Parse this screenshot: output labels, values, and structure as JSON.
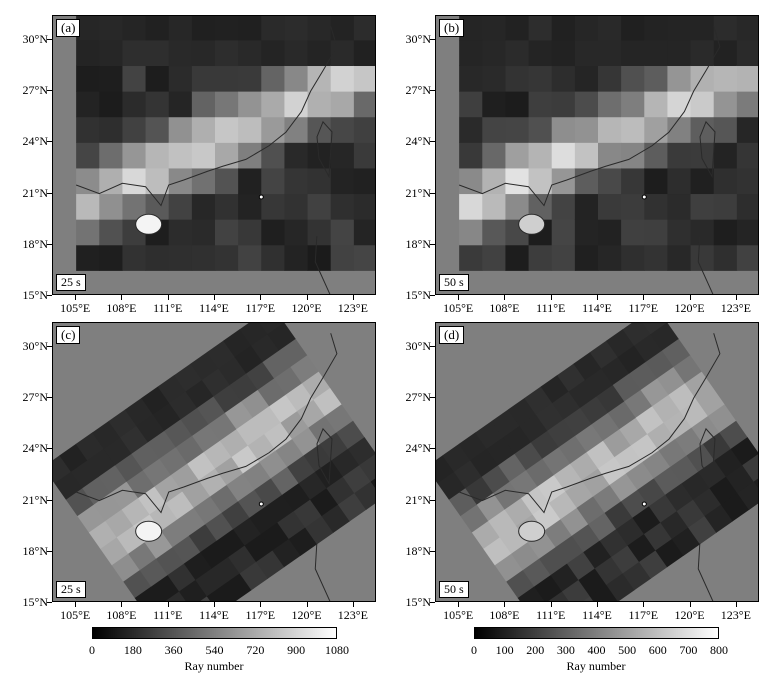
{
  "figure": {
    "panels": [
      {
        "label": "(a)",
        "period": "25 s",
        "grid_style": "regular",
        "cmax": 1080
      },
      {
        "label": "(b)",
        "period": "50 s",
        "grid_style": "regular",
        "cmax": 800
      },
      {
        "label": "(c)",
        "period": "25 s",
        "grid_style": "rotated",
        "cmax": 1080
      },
      {
        "label": "(d)",
        "period": "50 s",
        "grid_style": "rotated",
        "cmax": 800
      }
    ],
    "lat_labels": [
      "30°N",
      "27°N",
      "24°N",
      "21°N",
      "18°N",
      "15°N"
    ],
    "lon_labels": [
      "105°E",
      "108°E",
      "111°E",
      "114°E",
      "117°E",
      "120°E",
      "123°E"
    ],
    "colorbars": [
      {
        "ticks": [
          "0",
          "180",
          "360",
          "540",
          "720",
          "900",
          "1080"
        ],
        "label": "Ray number"
      },
      {
        "ticks": [
          "0",
          "100",
          "200",
          "300",
          "400",
          "500",
          "600",
          "700",
          "800"
        ],
        "label": "Ray number"
      }
    ],
    "colors": {
      "ocean": "#7f7f7f",
      "low": "#111111",
      "high": "#ffffff",
      "coast": "#2a2a2a"
    }
  }
}
